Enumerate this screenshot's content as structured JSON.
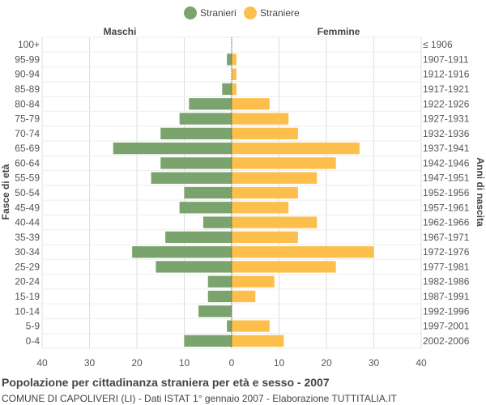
{
  "chart_data": {
    "type": "bar",
    "orientation": "horizontal-pyramid",
    "title": "Popolazione per cittadinanza straniera per età e sesso - 2007",
    "subtitle": "COMUNE DI CAPOLIVERI (LI) - Dati ISTAT 1° gennaio 2007 - Elaborazione TUTTITALIA.IT",
    "ylabel_left": "Fasce di età",
    "ylabel_right": "Anni di nascita",
    "left_header": "Maschi",
    "right_header": "Femmine",
    "xlim": [
      -40,
      40
    ],
    "xticks": [
      "40",
      "30",
      "20",
      "10",
      "0",
      "10",
      "20",
      "30",
      "40"
    ],
    "xtick_values": [
      -40,
      -30,
      -20,
      -10,
      0,
      10,
      20,
      30,
      40
    ],
    "grid": true,
    "legend_position": "top-center",
    "categories": [
      "100+",
      "95-99",
      "90-94",
      "85-89",
      "80-84",
      "75-79",
      "70-74",
      "65-69",
      "60-64",
      "55-59",
      "50-54",
      "45-49",
      "40-44",
      "35-39",
      "30-34",
      "25-29",
      "20-24",
      "15-19",
      "10-14",
      "5-9",
      "0-4"
    ],
    "birth_years": [
      "≤ 1906",
      "1907-1911",
      "1912-1916",
      "1917-1921",
      "1922-1926",
      "1927-1931",
      "1932-1936",
      "1937-1941",
      "1942-1946",
      "1947-1951",
      "1952-1956",
      "1957-1961",
      "1962-1966",
      "1967-1971",
      "1972-1976",
      "1977-1981",
      "1982-1986",
      "1987-1991",
      "1992-1996",
      "1997-2001",
      "2002-2006"
    ],
    "series": [
      {
        "name": "Stranieri",
        "color": "#7aa36d",
        "values": [
          0,
          1,
          0,
          2,
          9,
          11,
          15,
          25,
          15,
          17,
          10,
          11,
          6,
          14,
          21,
          16,
          5,
          5,
          7,
          1,
          10
        ]
      },
      {
        "name": "Straniere",
        "color": "#fdbf4c",
        "values": [
          0,
          1,
          1,
          1,
          8,
          12,
          14,
          27,
          22,
          18,
          14,
          12,
          18,
          14,
          30,
          22,
          9,
          5,
          0,
          8,
          11
        ]
      }
    ]
  }
}
